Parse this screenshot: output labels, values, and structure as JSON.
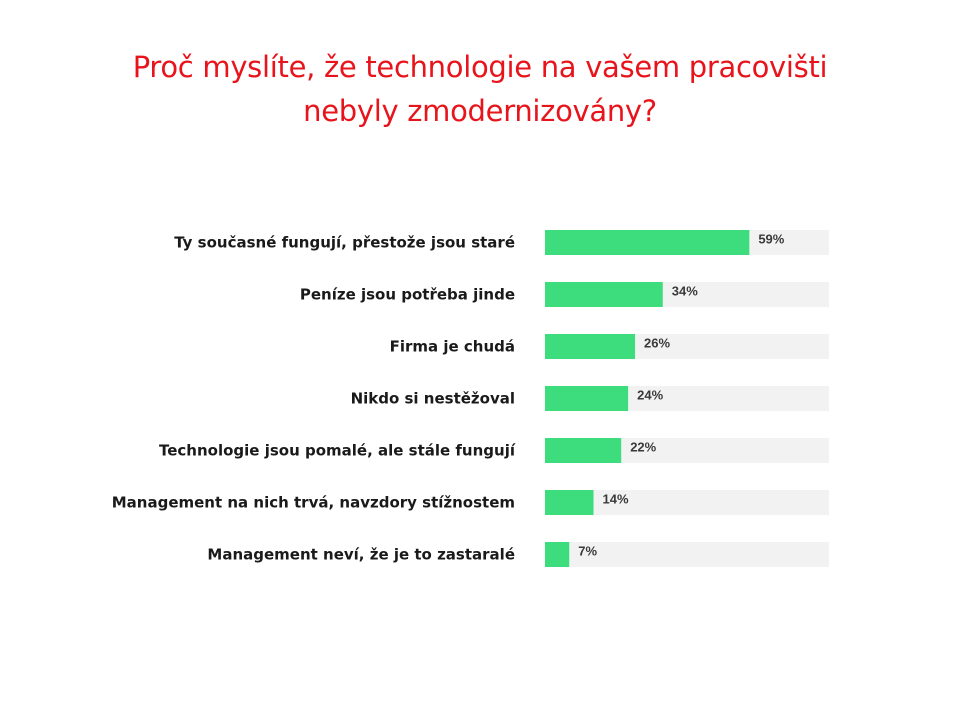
{
  "title": {
    "line1": "Proč myslíte, že technologie na vašem pracovišti",
    "line2": "nebyly zmodernizovány?"
  },
  "colors": {
    "title": "#e8141c",
    "bar": "#3ddc7c",
    "track": "#f2f2f2"
  },
  "chart_data": {
    "type": "bar",
    "orientation": "horizontal",
    "categories": [
      "Ty současné fungují, přestože jsou staré",
      "Peníze jsou potřeba jinde",
      "Firma je chudá",
      "Nikdo si nestěžoval",
      "Technologie jsou pomalé, ale stále fungují",
      "Management na nich trvá, navzdory stížnostem",
      "Management neví, že je to zastaralé"
    ],
    "values": [
      59,
      34,
      26,
      24,
      22,
      14,
      7
    ],
    "value_labels": [
      "59%",
      "34%",
      "26%",
      "24%",
      "22%",
      "14%",
      "7%"
    ],
    "xlim": [
      0,
      82
    ],
    "grid": false,
    "legend": "none"
  }
}
